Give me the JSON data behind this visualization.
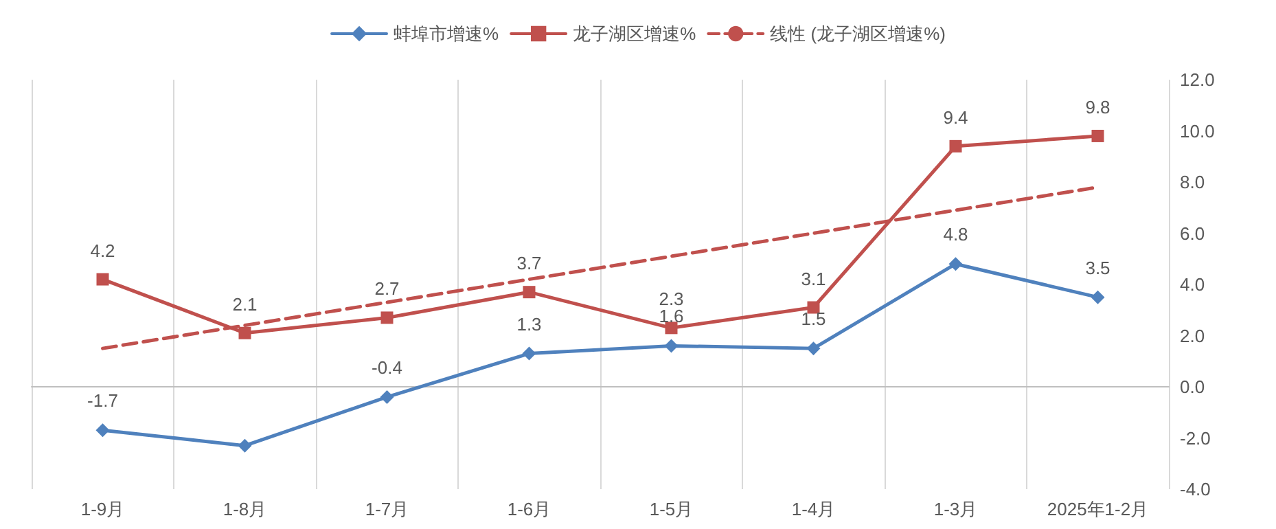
{
  "chart_data": {
    "type": "line",
    "categories": [
      "1-9月",
      "1-8月",
      "1-7月",
      "1-6月",
      "1-5月",
      "1-4月",
      "1-3月",
      "2025年1-2月"
    ],
    "series": [
      {
        "name": "蚌埠市增速%",
        "color": "#4f81bd",
        "marker": "diamond",
        "values": [
          -1.7,
          -2.3,
          -0.4,
          1.3,
          1.6,
          1.5,
          4.8,
          3.5
        ],
        "value_labels": [
          "-1.7",
          null,
          "-0.4",
          "1.3",
          "1.6",
          "1.5",
          "4.8",
          "3.5"
        ]
      },
      {
        "name": "龙子湖区增速%",
        "color": "#c0504d",
        "marker": "square",
        "values": [
          4.2,
          2.1,
          2.7,
          3.7,
          2.3,
          3.1,
          9.4,
          9.8
        ],
        "value_labels": [
          "4.2",
          "2.1",
          "2.7",
          "3.7",
          "2.3",
          "3.1",
          "9.4",
          "9.8"
        ]
      },
      {
        "name": "线性 (龙子湖区增速%)",
        "color": "#c0504d",
        "marker": "none",
        "line_style": "dashed",
        "values": [
          1.5,
          2.4,
          3.3,
          4.2,
          5.1,
          6.0,
          6.9,
          7.8
        ]
      }
    ],
    "ylim": [
      -4,
      12
    ],
    "yticks": [
      {
        "value": -4,
        "label": "-4.0"
      },
      {
        "value": -2,
        "label": "-2.0"
      },
      {
        "value": 0,
        "label": "0.0"
      },
      {
        "value": 2,
        "label": "2.0"
      },
      {
        "value": 4,
        "label": "4.0"
      },
      {
        "value": 6,
        "label": "6.0"
      },
      {
        "value": 8,
        "label": "8.0"
      },
      {
        "value": 10,
        "label": "10.0"
      },
      {
        "value": 12,
        "label": "12.0"
      }
    ],
    "grid": "x",
    "legend": "top"
  }
}
